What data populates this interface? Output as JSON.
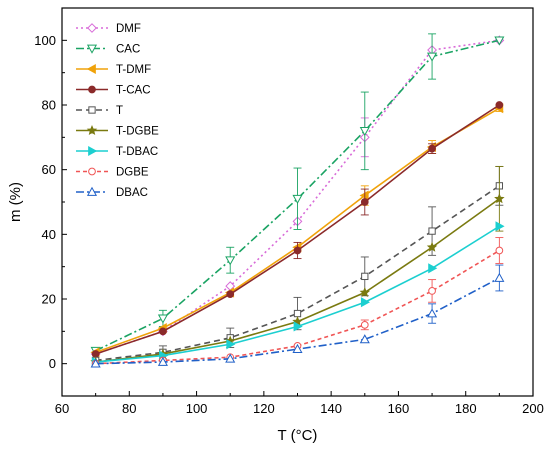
{
  "chart_data": {
    "type": "line",
    "xlabel": "T (°C)",
    "ylabel": "m (%)",
    "xlim": [
      60,
      200
    ],
    "ylim": [
      -10,
      110
    ],
    "x_ticks": [
      60,
      80,
      100,
      120,
      140,
      160,
      180,
      200
    ],
    "y_ticks": [
      0,
      20,
      40,
      60,
      80,
      100
    ],
    "grid": false,
    "legend_position": "top-left",
    "x": [
      70,
      90,
      110,
      130,
      150,
      170,
      190
    ],
    "series": [
      {
        "name": "DMF",
        "color": "#d86ad8",
        "dash": "2,3",
        "marker": "diamond",
        "values": [
          3,
          10,
          24,
          44,
          70,
          97,
          100
        ],
        "errors": [
          0,
          0,
          0,
          0,
          6,
          0,
          0
        ]
      },
      {
        "name": "CAC",
        "color": "#1aa363",
        "dash": "8,3,2,3",
        "marker": "triangle-down",
        "values": [
          4,
          14,
          32,
          51,
          72,
          95,
          100
        ],
        "errors": [
          0,
          2.5,
          4,
          9.5,
          12,
          7,
          0
        ]
      },
      {
        "name": "T-DMF",
        "color": "#f0a20a",
        "dash": "",
        "marker": "triangle-left",
        "values": [
          3.5,
          11,
          22,
          36,
          52,
          67,
          79
        ],
        "errors": [
          0,
          0,
          0,
          0,
          3,
          2,
          1
        ]
      },
      {
        "name": "T-CAC",
        "color": "#8b2a2a",
        "dash": "",
        "marker": "circle",
        "values": [
          3,
          10,
          21.5,
          35,
          50,
          66.5,
          80
        ],
        "errors": [
          0,
          0,
          0,
          2.5,
          4,
          1.5,
          0
        ]
      },
      {
        "name": "T",
        "color": "#555555",
        "dash": "6,4",
        "marker": "square",
        "values": [
          1,
          3.5,
          8,
          15.5,
          27,
          41,
          55
        ],
        "errors": [
          0,
          2,
          3,
          5,
          6,
          7.5,
          6
        ]
      },
      {
        "name": "T-DGBE",
        "color": "#7a7a10",
        "dash": "",
        "marker": "star",
        "values": [
          0.5,
          3,
          7,
          13,
          22,
          36,
          51
        ],
        "errors": [
          0,
          0,
          0,
          0,
          0,
          0,
          10
        ]
      },
      {
        "name": "T-DBAC",
        "color": "#1ccfd0",
        "dash": "",
        "marker": "triangle-right",
        "values": [
          0.5,
          2.5,
          6,
          11.5,
          19,
          29.5,
          42.5
        ],
        "errors": [
          0,
          0,
          0,
          0,
          0,
          0,
          0
        ]
      },
      {
        "name": "DGBE",
        "color": "#f05555",
        "dash": "4,3",
        "marker": "circle-open",
        "values": [
          0,
          1,
          2,
          5.5,
          12,
          22.5,
          35
        ],
        "errors": [
          0,
          0,
          0,
          0,
          1.5,
          3.5,
          4
        ]
      },
      {
        "name": "DBAC",
        "color": "#2060c8",
        "dash": "8,3,2,3",
        "marker": "triangle-up",
        "values": [
          0,
          0.5,
          1.5,
          4.5,
          7.5,
          15.5,
          26.5
        ],
        "errors": [
          0,
          0,
          0,
          0,
          0,
          3,
          4
        ]
      }
    ]
  }
}
